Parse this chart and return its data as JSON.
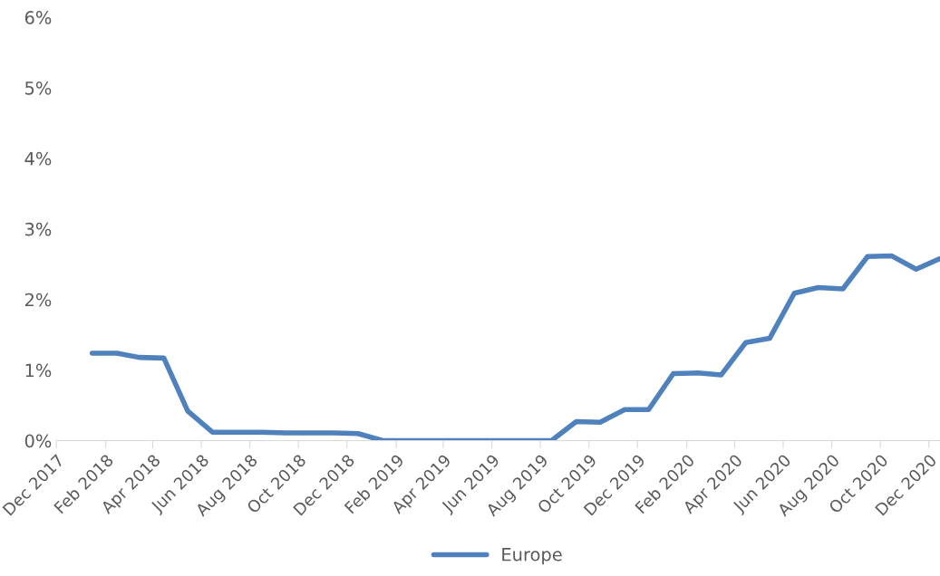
{
  "chart_data": {
    "type": "line",
    "x": [
      "2018-01-15",
      "2018-02-15",
      "2018-03-15",
      "2018-04-15",
      "2018-05-15",
      "2018-06-15",
      "2018-07-15",
      "2018-08-15",
      "2018-09-15",
      "2018-10-15",
      "2018-11-15",
      "2018-12-15",
      "2019-01-15",
      "2019-02-15",
      "2019-03-15",
      "2019-04-15",
      "2019-05-15",
      "2019-06-15",
      "2019-07-15",
      "2019-08-15",
      "2019-09-15",
      "2019-10-15",
      "2019-11-15",
      "2019-12-15",
      "2020-01-15",
      "2020-02-15",
      "2020-03-15",
      "2020-04-15",
      "2020-05-15",
      "2020-06-15",
      "2020-07-15",
      "2020-08-15",
      "2020-09-15",
      "2020-10-15",
      "2020-11-15",
      "2020-12-15"
    ],
    "series": [
      {
        "name": "Europe",
        "color": "#4f81bd",
        "values": [
          1.24,
          1.24,
          1.18,
          1.17,
          0.42,
          0.12,
          0.12,
          0.12,
          0.11,
          0.11,
          0.11,
          0.1,
          0,
          0,
          0,
          0,
          0,
          0,
          0,
          0,
          0.27,
          0.26,
          0.44,
          0.44,
          0.95,
          0.96,
          0.93,
          1.39,
          1.45,
          2.09,
          2.17,
          2.15,
          2.61,
          2.62,
          2.43,
          2.58
        ]
      }
    ],
    "xlim": [
      "2017-12-01",
      "2020-12-15"
    ],
    "xticks": [
      {
        "value": "2017-12-01",
        "label": "Dec 2017"
      },
      {
        "value": "2018-02-01",
        "label": "Feb 2018"
      },
      {
        "value": "2018-04-01",
        "label": "Apr 2018"
      },
      {
        "value": "2018-06-01",
        "label": "Jun 2018"
      },
      {
        "value": "2018-08-01",
        "label": "Aug 2018"
      },
      {
        "value": "2018-10-01",
        "label": "Oct 2018"
      },
      {
        "value": "2018-12-01",
        "label": "Dec 2018"
      },
      {
        "value": "2019-02-01",
        "label": "Feb 2019"
      },
      {
        "value": "2019-04-01",
        "label": "Apr 2019"
      },
      {
        "value": "2019-06-01",
        "label": "Jun 2019"
      },
      {
        "value": "2019-08-01",
        "label": "Aug 2019"
      },
      {
        "value": "2019-10-01",
        "label": "Oct 2019"
      },
      {
        "value": "2019-12-01",
        "label": "Dec 2019"
      },
      {
        "value": "2020-02-01",
        "label": "Feb 2020"
      },
      {
        "value": "2020-04-01",
        "label": "Apr 2020"
      },
      {
        "value": "2020-06-01",
        "label": "Jun 2020"
      },
      {
        "value": "2020-08-01",
        "label": "Aug 2020"
      },
      {
        "value": "2020-10-01",
        "label": "Oct 2020"
      },
      {
        "value": "2020-12-01",
        "label": "Dec 2020"
      }
    ],
    "ylim": [
      0,
      6
    ],
    "yticks": [
      {
        "value": 0,
        "label": "0%"
      },
      {
        "value": 1,
        "label": "1%"
      },
      {
        "value": 2,
        "label": "2%"
      },
      {
        "value": 3,
        "label": "3%"
      },
      {
        "value": 4,
        "label": "4%"
      },
      {
        "value": 5,
        "label": "5%"
      },
      {
        "value": 6,
        "label": "6%"
      }
    ],
    "grid": false,
    "legend": "bottom",
    "marker": "none",
    "line_style": "solid"
  }
}
